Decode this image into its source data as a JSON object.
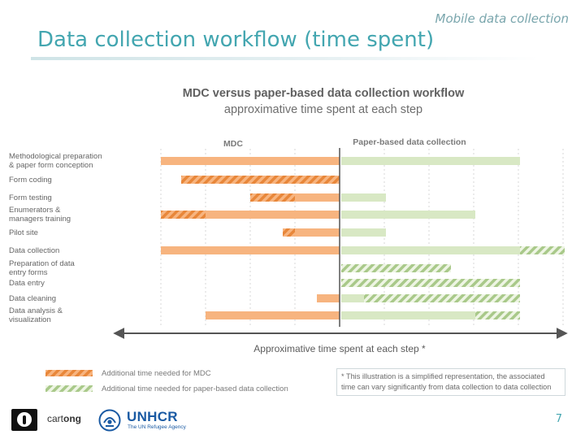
{
  "slide": {
    "subtitle": "Mobile data collection",
    "title": "Data collection workflow (time spent)",
    "page_number": "7"
  },
  "diagram": {
    "title": "MDC versus paper-based data collection workflow",
    "subtitle": "approximative time spent at each step",
    "mdc_header": "MDC",
    "paper_header": "Paper-based data collection",
    "axis_label": "Approximative time spent at each step *",
    "rows": [
      {
        "label": [
          "Methodological preparation",
          "& paper form conception"
        ],
        "mdc_solid": 220,
        "mdc_hatch": 0,
        "paper_solid": 220,
        "paper_hatch": 0
      },
      {
        "label": [
          "Form coding"
        ],
        "mdc_solid": 0,
        "mdc_hatch": 195,
        "paper_solid": 0,
        "paper_hatch": 0
      },
      {
        "label": [
          "Form testing"
        ],
        "mdc_solid": 55,
        "mdc_hatch": 55,
        "paper_solid": 55,
        "paper_hatch": 0
      },
      {
        "label": [
          "Enumerators &",
          "managers training"
        ],
        "mdc_solid": 165,
        "mdc_hatch": 55,
        "paper_solid": 165,
        "paper_hatch": 0
      },
      {
        "label": [
          "Pilot site"
        ],
        "mdc_solid": 55,
        "mdc_hatch": 15,
        "paper_solid": 55,
        "paper_hatch": 0
      },
      {
        "label": [
          "Data collection"
        ],
        "mdc_solid": 220,
        "mdc_hatch": 0,
        "paper_solid": 220,
        "paper_hatch": 55
      },
      {
        "label": [
          "Preparation of data",
          "entry forms"
        ],
        "mdc_solid": 0,
        "mdc_hatch": 0,
        "paper_solid": 0,
        "paper_hatch": 135
      },
      {
        "label": [
          "Data entry"
        ],
        "mdc_solid": 0,
        "mdc_hatch": 0,
        "paper_solid": 0,
        "paper_hatch": 220
      },
      {
        "label": [
          "Data cleaning"
        ],
        "mdc_solid": 28,
        "mdc_hatch": 0,
        "paper_solid": 28,
        "paper_hatch": 192
      },
      {
        "label": [
          "Data analysis &",
          "visualization"
        ],
        "mdc_solid": 165,
        "mdc_hatch": 0,
        "paper_solid": 165,
        "paper_hatch": 55
      }
    ],
    "legend": {
      "mdc": "Additional time needed for MDC",
      "paper": "Additional time needed for paper-based data collection"
    },
    "footnote": "* This illustration is a simplified representation, the associated time can vary significantly from data collection to data collection",
    "colors": {
      "mdc_solid": "#f7b47f",
      "mdc_hatch": "#e8873a",
      "paper_solid": "#d8e8c4",
      "paper_hatch": "#a9c98a",
      "axis": "#555555",
      "grid": "#d7d7d7"
    }
  },
  "logos": {
    "cartong_prefix": "cart",
    "cartong_suffix": "ong",
    "unhcr_name": "UNHCR",
    "unhcr_tagline": "The UN Refugee Agency"
  }
}
